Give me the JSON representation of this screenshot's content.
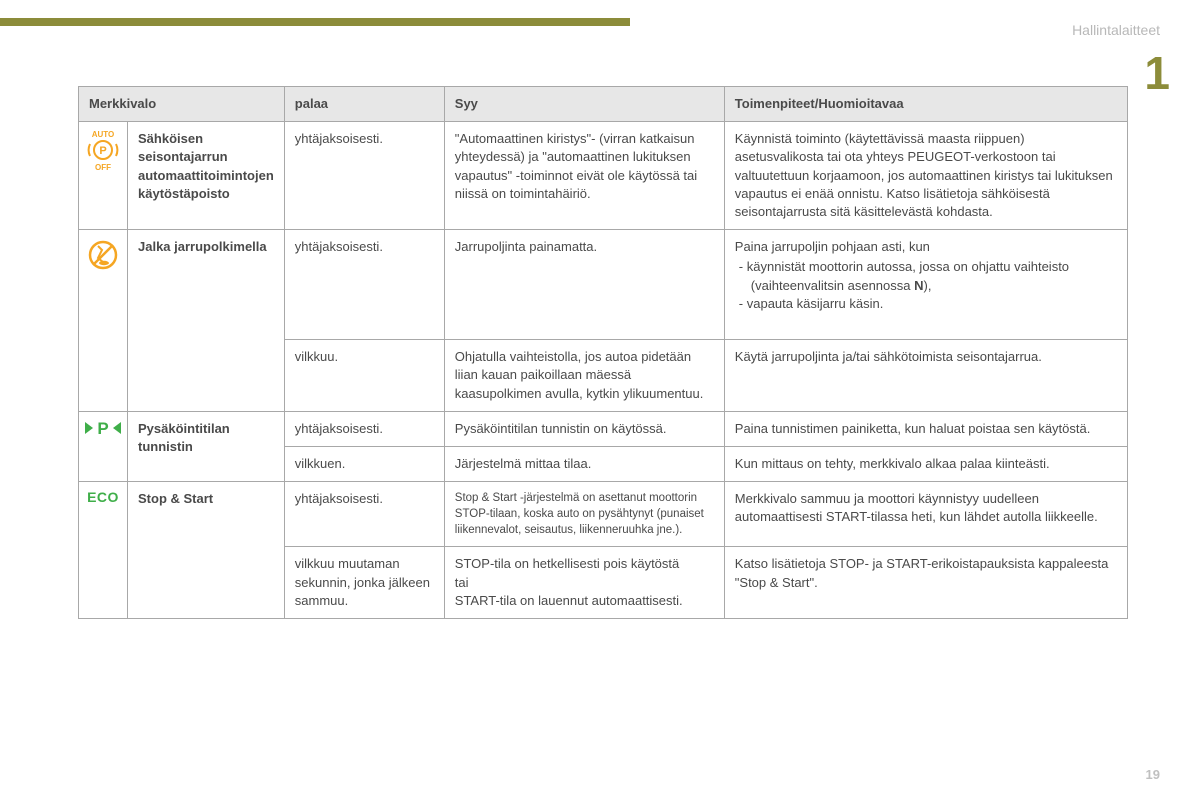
{
  "page": {
    "section_header": "Hallintalaitteet",
    "chapter_number": "1",
    "page_number": "19"
  },
  "colors": {
    "accent": "#8c8c3a",
    "header_grey": "#b8b8b8",
    "orange": "#f5a623",
    "green": "#3fae49"
  },
  "table": {
    "headers": {
      "col1": "Merkkivalo",
      "col2": "palaa",
      "col3": "Syy",
      "col4": "Toimenpiteet/Huomioitavaa"
    },
    "rows": {
      "auto_p_off": {
        "label": "Sähköisen seisontajarrun automaattitoimintojen käytöstäpoisto",
        "palaa": "yhtäjaksoisesti.",
        "syy": "\"Automaattinen kiristys\"- (virran katkaisun yhteydessä) ja \"automaattinen lukituksen vapautus\" -toiminnot eivät ole käytössä tai niissä on toimintahäiriö.",
        "action": "Käynnistä toiminto (käytettävissä maasta riippuen) asetusvalikosta tai ota yhteys PEUGEOT-verkostoon tai valtuutettuun korjaamoon, jos automaattinen kiristys tai lukituksen vapautus ei enää onnistu. Katso lisätietoja sähköisestä seisontajarrusta sitä käsittelevästä kohdasta."
      },
      "brake_pedal": {
        "label": "Jalka jarrupolkimella",
        "r1": {
          "palaa": "yhtäjaksoisesti.",
          "syy": "Jarrupoljinta painamatta.",
          "action_pre": "Paina jarrupoljin pohjaan asti, kun",
          "bullet1": "käynnistät moottorin autossa, jossa on ohjattu vaihteisto (vaihteenvalitsin asennossa N),",
          "bullet2": "vapauta käsijarru käsin."
        },
        "r2": {
          "palaa": "vilkkuu.",
          "syy": "Ohjatulla vaihteistolla, jos autoa pidetään liian kauan paikoillaan mäessä kaasupolkimen avulla, kytkin ylikuumentuu.",
          "action": "Käytä jarrupoljinta ja/tai sähkötoimista seisontajarrua."
        }
      },
      "park_sensor": {
        "label": "Pysäköintitilan tunnistin",
        "r1": {
          "palaa": "yhtäjaksoisesti.",
          "syy": "Pysäköintitilan tunnistin on käytössä.",
          "action": "Paina tunnistimen painiketta, kun haluat poistaa sen käytöstä."
        },
        "r2": {
          "palaa": "vilkkuen.",
          "syy": "Järjestelmä mittaa tilaa.",
          "action": "Kun mittaus on tehty, merkkivalo alkaa palaa kiinteästi."
        }
      },
      "stop_start": {
        "label": "Stop & Start",
        "r1": {
          "palaa": "yhtäjaksoisesti.",
          "syy": "Stop & Start -järjestelmä on asettanut moottorin STOP-tilaan, koska auto on pysähtynyt (punaiset liikennevalot, seisautus, liikenneruuhka jne.).",
          "action": "Merkkivalo sammuu ja moottori käynnistyy uudelleen automaattisesti START-tilassa heti, kun lähdet autolla liikkeelle."
        },
        "r2": {
          "palaa": "vilkkuu muutaman sekunnin, jonka jälkeen sammuu.",
          "syy": "STOP-tila on hetkellisesti pois käytöstä\ntai\nSTART-tila on lauennut automaattisesti.",
          "action": "Katso lisätietoja STOP- ja START-erikoistapauksista kappaleesta \"Stop & Start\"."
        }
      }
    }
  }
}
